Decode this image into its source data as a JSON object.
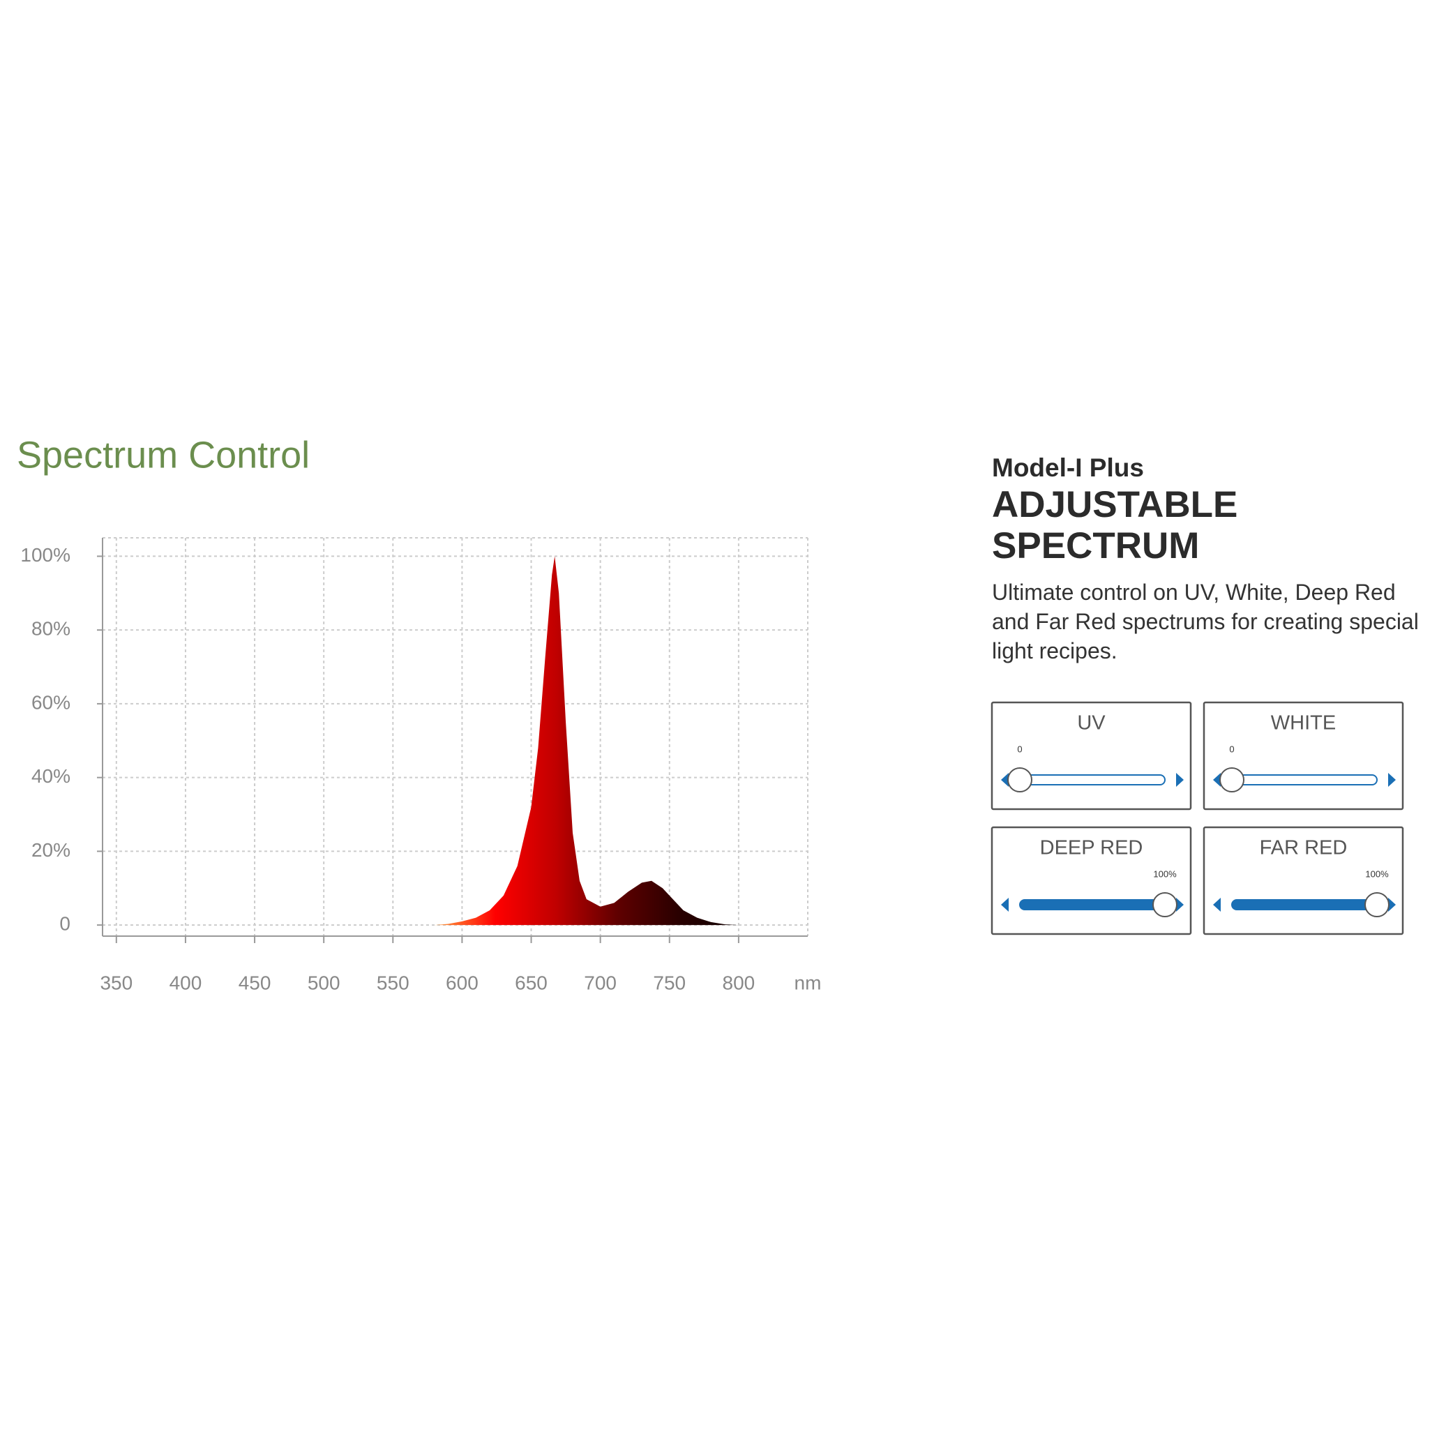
{
  "title": "Spectrum Control",
  "chart_data": {
    "type": "area",
    "x": [
      580,
      590,
      600,
      610,
      620,
      630,
      640,
      650,
      655,
      660,
      665,
      667,
      670,
      675,
      680,
      685,
      690,
      700,
      710,
      720,
      730,
      737,
      745,
      750,
      760,
      770,
      780,
      790,
      800
    ],
    "values": [
      0,
      0.3,
      1,
      2,
      4,
      8,
      16,
      32,
      48,
      72,
      95,
      100,
      90,
      55,
      25,
      12,
      7,
      5,
      6,
      9,
      11.5,
      12,
      10,
      8,
      4,
      2,
      0.8,
      0.2,
      0
    ],
    "colors": [
      "#ffa040",
      "#ff0000",
      "#c00000",
      "#600000",
      "#2a0000",
      "#100000"
    ],
    "xlim": [
      340,
      850
    ],
    "xticks": [
      350,
      400,
      450,
      500,
      550,
      600,
      650,
      700,
      750,
      800
    ],
    "x_label": "nm",
    "ylim": [
      -3,
      105
    ],
    "yticks": [
      0,
      {
        "value": 20,
        "label": "20%"
      },
      {
        "value": 40,
        "label": "40%"
      },
      {
        "value": 60,
        "label": "60%"
      },
      {
        "value": 80,
        "label": "80%"
      },
      {
        "value": 100,
        "label": "100%"
      }
    ],
    "grid": true
  },
  "panel": {
    "model": "Model-I Plus",
    "heading": "ADJUSTABLE SPECTRUM",
    "description": "Ultimate control on UV, White, Deep Red and Far Red spectrums for creating special light recipes.",
    "controls": [
      {
        "name": "UV",
        "value": 0
      },
      {
        "name": "WHITE",
        "value": 0
      },
      {
        "name": "DEEP RED",
        "value": 100,
        "value_label": "100%"
      },
      {
        "name": "FAR RED",
        "value": 100,
        "value_label": "100%"
      }
    ]
  }
}
